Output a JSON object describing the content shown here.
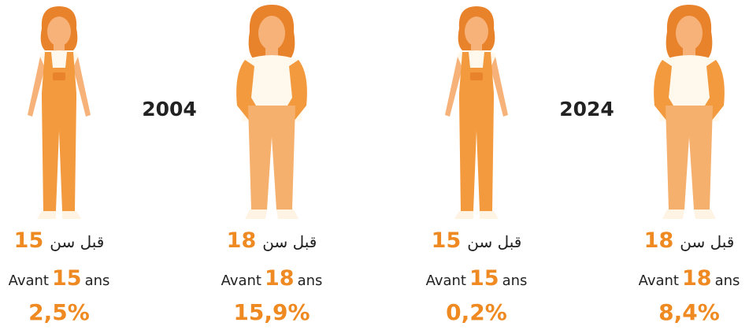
{
  "groups": [
    {
      "year": "2004",
      "items": [
        {
          "arabic": "قبل سن",
          "age": "15",
          "avant": "Avant",
          "age_fr": "15",
          "ans": "ans",
          "value": "2,5%"
        },
        {
          "arabic": "قبل سن",
          "age": "18",
          "avant": "Avant",
          "age_fr": "18",
          "ans": "ans",
          "value": "15,9%"
        }
      ]
    },
    {
      "year": "2024",
      "items": [
        {
          "arabic": "قبل سن",
          "age": "15",
          "avant": "Avant",
          "age_fr": "15",
          "ans": "ans",
          "value": "0,2%"
        },
        {
          "arabic": "قبل سن",
          "age": "18",
          "avant": "Avant",
          "age_fr": "18",
          "ans": "ans",
          "value": "8,4%"
        }
      ]
    }
  ]
}
